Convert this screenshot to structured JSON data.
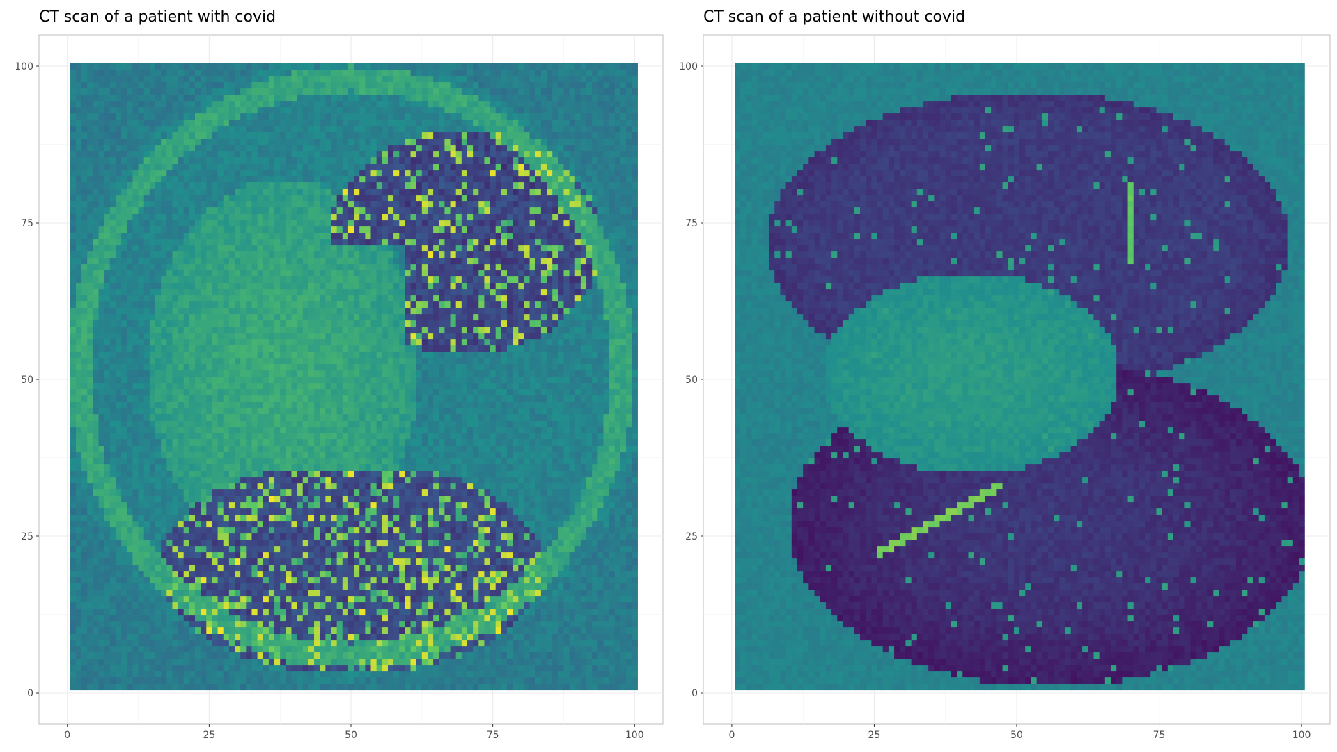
{
  "chart_data": [
    {
      "type": "heatmap",
      "title": "CT scan of a patient with covid",
      "xlabel": "",
      "ylabel": "",
      "xlim": [
        -5,
        105
      ],
      "ylim": [
        -5,
        105
      ],
      "x_ticks": [
        0,
        25,
        50,
        75,
        100
      ],
      "y_ticks": [
        0,
        25,
        50,
        75,
        100
      ],
      "grid": true,
      "legend": "none",
      "colormap": [
        "#440154",
        "#3b528b",
        "#21908d",
        "#5dc863",
        "#fde725"
      ],
      "grid_size": 100,
      "description_values": "100x100 CT intensity raster, axial chest slice with bright ground-glass opacities"
    },
    {
      "type": "heatmap",
      "title": "CT scan of a patient without covid",
      "xlabel": "",
      "ylabel": "",
      "xlim": [
        -5,
        105
      ],
      "ylim": [
        -5,
        105
      ],
      "x_ticks": [
        0,
        25,
        50,
        75,
        100
      ],
      "y_ticks": [
        0,
        25,
        50,
        75,
        100
      ],
      "grid": true,
      "legend": "none",
      "colormap": [
        "#440154",
        "#3b528b",
        "#21908d",
        "#5dc863",
        "#fde725"
      ],
      "grid_size": 100,
      "description_values": "100x100 CT intensity raster, axial chest slice with dark clear lung fields"
    }
  ]
}
